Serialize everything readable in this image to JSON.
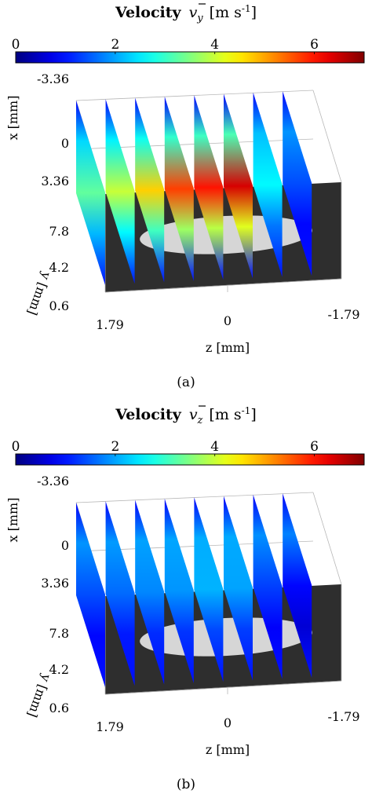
{
  "figure": {
    "panels": [
      {
        "caption": "(a)",
        "title": {
          "word": "Velocity",
          "symbol": "v",
          "subscript": "y",
          "unit_open": "[m s",
          "unit_exp": "-1",
          "unit_close": "]"
        },
        "colormap": "jet",
        "colorbar": {
          "range": [
            0,
            7
          ],
          "ticks": [
            "0",
            "2",
            "4",
            "6"
          ],
          "tick_values": [
            0,
            2,
            4,
            6
          ]
        },
        "axes": {
          "x_label": "x [mm]",
          "x_ticks": [
            "-3.36",
            "0",
            "3.36"
          ],
          "y_label": "y [mm]",
          "y_ticks": [
            "7.8",
            "4.2",
            "0.6"
          ],
          "z_label": "z [mm]",
          "z_ticks": [
            "1.79",
            "0",
            "-1.79"
          ]
        },
        "slice_peak_velocity": [
          3.3,
          4.0,
          4.7,
          5.7,
          6.0,
          6.4,
          2.6,
          1.4
        ]
      },
      {
        "caption": "(b)",
        "title": {
          "word": "Velocity",
          "symbol": "v",
          "subscript": "z",
          "unit_open": "[m s",
          "unit_exp": "-1",
          "unit_close": "]"
        },
        "colormap": "jet",
        "colorbar": {
          "range": [
            0,
            7
          ],
          "ticks": [
            "0",
            "2",
            "4",
            "6"
          ],
          "tick_values": [
            0,
            2,
            4,
            6
          ]
        },
        "axes": {
          "x_label": "x [mm]",
          "x_ticks": [
            "-3.36",
            "0",
            "3.36"
          ],
          "y_label": "y [mm]",
          "y_ticks": [
            "7.8",
            "4.2",
            "0.6"
          ],
          "z_label": "z [mm]",
          "z_ticks": [
            "1.79",
            "0",
            "-1.79"
          ]
        },
        "slice_peak_velocity": [
          1.4,
          1.6,
          1.8,
          1.9,
          2.1,
          2.0,
          1.3,
          0.9
        ]
      }
    ]
  },
  "chart_data": [
    {
      "type": "heatmap",
      "title": "Velocity v_y [m s^-1]",
      "colorbar_range": [
        0,
        7
      ],
      "colorbar_ticks": [
        0,
        2,
        4,
        6
      ],
      "slice_count": 8,
      "slice_peak_velocity": [
        3.3,
        4.0,
        4.7,
        5.7,
        6.0,
        6.4,
        2.6,
        1.4
      ],
      "x_ticks": [
        -3.36,
        0,
        3.36
      ],
      "y_ticks": [
        7.8,
        4.2,
        0.6
      ],
      "z_ticks": [
        1.79,
        0,
        -1.79
      ]
    },
    {
      "type": "heatmap",
      "title": "Velocity v_z [m s^-1]",
      "colorbar_range": [
        0,
        7
      ],
      "colorbar_ticks": [
        0,
        2,
        4,
        6
      ],
      "slice_count": 8,
      "slice_peak_velocity": [
        1.4,
        1.6,
        1.8,
        1.9,
        2.1,
        2.0,
        1.3,
        0.9
      ],
      "x_ticks": [
        -3.36,
        0,
        3.36
      ],
      "y_ticks": [
        7.8,
        4.2,
        0.6
      ],
      "z_ticks": [
        1.79,
        0,
        -1.79
      ]
    }
  ]
}
